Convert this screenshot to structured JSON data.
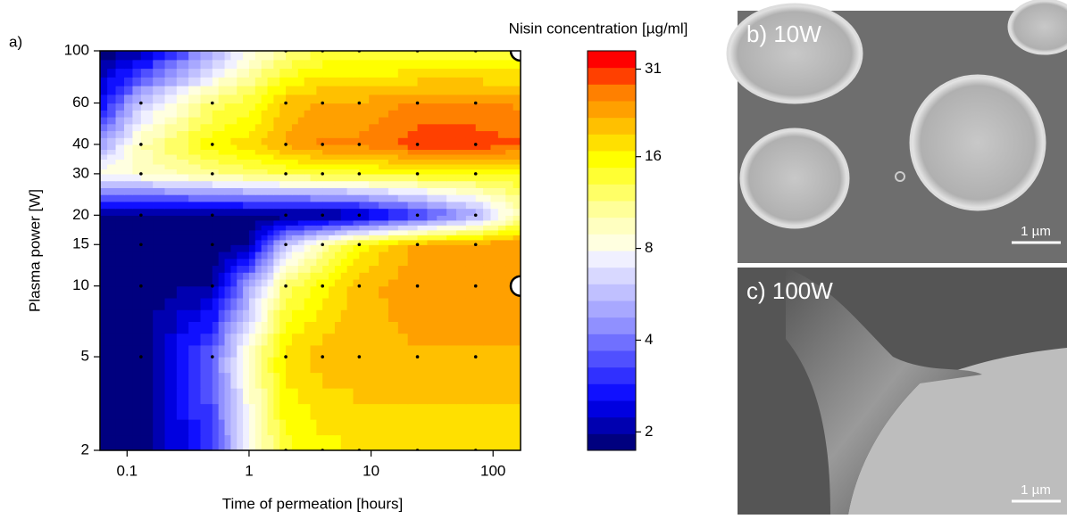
{
  "chart_data": {
    "type": "contour",
    "panel_label": "a)",
    "xlabel": "Time of permeation [hours]",
    "ylabel": "Plasma power [W]",
    "xscale": "log",
    "yscale": "log",
    "xlim": [
      0.06,
      168
    ],
    "ylim": [
      2,
      100
    ],
    "xticks": [
      0.1,
      1,
      10,
      100
    ],
    "yticks": [
      2,
      5,
      10,
      15,
      20,
      30,
      40,
      60,
      100
    ],
    "grid_x": [
      0.05,
      0.13,
      0.5,
      1,
      2,
      4,
      8,
      24,
      72,
      168
    ],
    "grid_y": [
      2,
      5,
      10,
      15,
      20,
      30,
      40,
      60,
      100
    ],
    "z": [
      [
        1.8,
        1.8,
        3,
        8,
        14,
        16,
        17,
        17,
        17,
        17
      ],
      [
        1.8,
        1.8,
        4,
        9,
        18,
        20,
        21,
        21,
        21,
        21
      ],
      [
        1.8,
        1.8,
        2,
        5,
        12,
        16,
        20,
        24,
        24,
        24
      ],
      [
        1.8,
        1.8,
        1.8,
        2,
        6,
        10,
        16,
        22,
        24,
        24
      ],
      [
        1.8,
        1.8,
        1.8,
        1.8,
        1.8,
        1.8,
        2,
        3,
        5,
        10
      ],
      [
        9,
        9,
        11,
        12,
        13,
        14,
        14,
        15,
        15,
        15
      ],
      [
        4,
        10,
        16,
        18,
        22,
        25,
        25,
        30,
        30,
        28
      ],
      [
        2,
        6,
        12,
        14,
        20,
        22,
        22,
        25,
        25,
        24
      ],
      [
        1.8,
        2,
        5,
        8,
        11,
        13,
        13,
        13,
        13,
        13
      ]
    ],
    "points": {
      "x": [
        2,
        4,
        8,
        24,
        72,
        0.13,
        0.5,
        2,
        4,
        8,
        24,
        72,
        0.13,
        0.5,
        2,
        4,
        8,
        24,
        72,
        0.13,
        0.5,
        2,
        4,
        8,
        24,
        72,
        0.13,
        0.5,
        2,
        4,
        8,
        24,
        72,
        0.13,
        0.5,
        2,
        4,
        8,
        24,
        72,
        0.13,
        0.5,
        2,
        4,
        8,
        24,
        72,
        0.13,
        0.5,
        2,
        4,
        8,
        24,
        72,
        2,
        4,
        8,
        24,
        72
      ],
      "y": [
        2,
        2,
        2,
        2,
        2,
        5,
        5,
        5,
        5,
        5,
        5,
        5,
        10,
        10,
        10,
        10,
        10,
        10,
        10,
        15,
        15,
        15,
        15,
        15,
        15,
        15,
        20,
        20,
        20,
        20,
        20,
        20,
        20,
        30,
        30,
        30,
        30,
        30,
        30,
        30,
        40,
        40,
        40,
        40,
        40,
        40,
        40,
        60,
        60,
        60,
        60,
        60,
        60,
        60,
        100,
        100,
        100,
        100,
        100
      ]
    },
    "highlights": {
      "x": [
        168,
        168
      ],
      "y": [
        100,
        10
      ]
    },
    "colorbar": {
      "title": "Nisin concentration [µg/ml]",
      "zlim": [
        1.74,
        35.6
      ],
      "ticks": [
        2,
        4,
        8,
        16,
        31
      ],
      "colors": [
        "#00007f",
        "#0000b0",
        "#0000e0",
        "#1010ff",
        "#3030ff",
        "#5050ff",
        "#7070ff",
        "#9090ff",
        "#a8a8ff",
        "#c0c0ff",
        "#d8d8ff",
        "#f0f0ff",
        "#ffffe0",
        "#ffffc0",
        "#ffff99",
        "#ffff66",
        "#ffff33",
        "#ffff00",
        "#ffe000",
        "#ffc000",
        "#ffa000",
        "#ff8000",
        "#ff4000",
        "#ff0000"
      ]
    }
  },
  "images": [
    {
      "label": "b) 10W",
      "scale": "1 µm"
    },
    {
      "label": "c) 100W",
      "scale": "1 µm"
    }
  ]
}
